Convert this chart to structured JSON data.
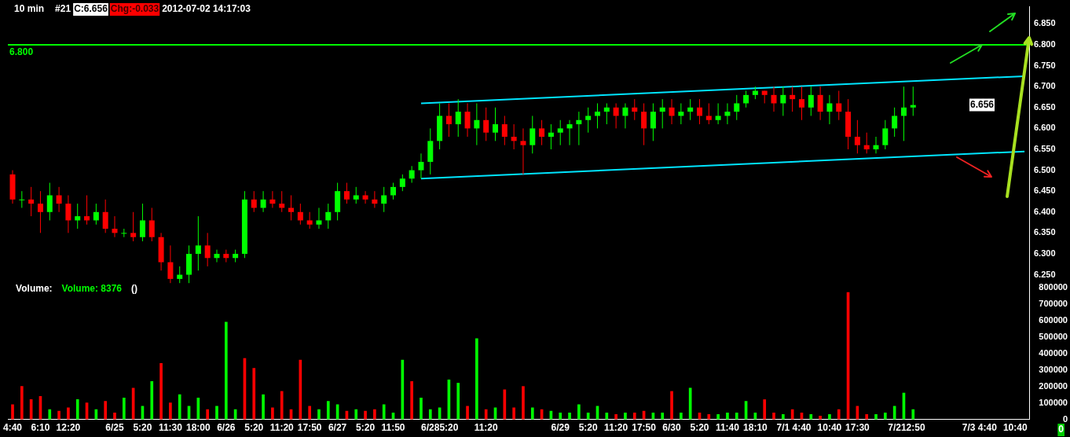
{
  "chart_data": {
    "type": "candlestick",
    "title": "10 min",
    "annotations": [
      "#21",
      "C:6.656",
      "Chg:-0.033",
      "2012-07-02 14:17:03",
      "Volume:",
      "Volume: 8376",
      "()",
      "0",
      {
        "text": "6.656",
        "y": 6.656
      }
    ],
    "categories": [
      "4:40",
      null,
      null,
      "6:10",
      null,
      null,
      "12:20",
      null,
      null,
      null,
      null,
      "6/25",
      null,
      null,
      "5:20",
      null,
      null,
      "11:30",
      null,
      null,
      "18:00",
      null,
      null,
      "6/26",
      null,
      null,
      "5:20",
      null,
      null,
      "11:20",
      null,
      null,
      "17:50",
      null,
      null,
      "6/27",
      null,
      null,
      "5:20",
      null,
      null,
      "11:50",
      null,
      null,
      null,
      "6/28",
      null,
      "5:20",
      null,
      null,
      null,
      "11:20",
      null,
      null,
      null,
      null,
      null,
      null,
      null,
      "6/29",
      null,
      null,
      "5:20",
      null,
      null,
      "11:20",
      null,
      null,
      "17:50",
      null,
      null,
      "6/30",
      null,
      null,
      "5:20",
      null,
      null,
      "11:40",
      null,
      null,
      "18:10",
      null,
      null,
      "7/1",
      null,
      "4:40",
      null,
      null,
      "10:40",
      null,
      null,
      "17:30",
      null,
      null,
      null,
      "7/2",
      null,
      "12:50",
      null,
      null,
      null,
      null,
      null,
      "7/3",
      null,
      "4:40",
      null,
      null,
      "10:40",
      null
    ],
    "ohlc": [
      [
        6.49,
        6.5,
        6.42,
        6.43
      ],
      [
        6.43,
        6.45,
        6.41,
        6.43
      ],
      [
        6.43,
        6.46,
        6.39,
        6.42
      ],
      [
        6.42,
        6.45,
        6.35,
        6.4
      ],
      [
        6.4,
        6.47,
        6.38,
        6.44
      ],
      [
        6.44,
        6.46,
        6.4,
        6.42
      ],
      [
        6.42,
        6.44,
        6.35,
        6.38
      ],
      [
        6.38,
        6.42,
        6.36,
        6.39
      ],
      [
        6.39,
        6.44,
        6.37,
        6.38
      ],
      [
        6.38,
        6.42,
        6.37,
        6.4
      ],
      [
        6.4,
        6.43,
        6.35,
        6.36
      ],
      [
        6.36,
        6.39,
        6.34,
        6.35
      ],
      [
        6.35,
        6.36,
        6.34,
        6.35
      ],
      [
        6.35,
        6.4,
        6.33,
        6.34
      ],
      [
        6.34,
        6.42,
        6.33,
        6.38
      ],
      [
        6.38,
        6.41,
        6.33,
        6.34
      ],
      [
        6.34,
        6.35,
        6.26,
        6.28
      ],
      [
        6.28,
        6.32,
        6.23,
        6.24
      ],
      [
        6.24,
        6.27,
        6.23,
        6.25
      ],
      [
        6.25,
        6.32,
        6.23,
        6.3
      ],
      [
        6.3,
        6.39,
        6.26,
        6.32
      ],
      [
        6.32,
        6.35,
        6.27,
        6.29
      ],
      [
        6.29,
        6.31,
        6.28,
        6.3
      ],
      [
        6.3,
        6.31,
        6.28,
        6.29
      ],
      [
        6.29,
        6.31,
        6.28,
        6.3
      ],
      [
        6.3,
        6.45,
        6.29,
        6.43
      ],
      [
        6.43,
        6.45,
        6.4,
        6.41
      ],
      [
        6.41,
        6.45,
        6.4,
        6.43
      ],
      [
        6.43,
        6.45,
        6.41,
        6.42
      ],
      [
        6.42,
        6.45,
        6.4,
        6.41
      ],
      [
        6.41,
        6.44,
        6.38,
        6.4
      ],
      [
        6.4,
        6.42,
        6.37,
        6.38
      ],
      [
        6.38,
        6.4,
        6.36,
        6.37
      ],
      [
        6.37,
        6.41,
        6.36,
        6.38
      ],
      [
        6.38,
        6.42,
        6.36,
        6.4
      ],
      [
        6.4,
        6.47,
        6.38,
        6.45
      ],
      [
        6.45,
        6.47,
        6.42,
        6.43
      ],
      [
        6.43,
        6.46,
        6.42,
        6.44
      ],
      [
        6.44,
        6.45,
        6.42,
        6.43
      ],
      [
        6.43,
        6.45,
        6.41,
        6.42
      ],
      [
        6.42,
        6.46,
        6.4,
        6.44
      ],
      [
        6.44,
        6.47,
        6.43,
        6.46
      ],
      [
        6.46,
        6.49,
        6.45,
        6.48
      ],
      [
        6.48,
        6.51,
        6.47,
        6.5
      ],
      [
        6.5,
        6.54,
        6.48,
        6.52
      ],
      [
        6.52,
        6.6,
        6.49,
        6.57
      ],
      [
        6.57,
        6.66,
        6.55,
        6.63
      ],
      [
        6.63,
        6.66,
        6.58,
        6.61
      ],
      [
        6.61,
        6.67,
        6.58,
        6.64
      ],
      [
        6.64,
        6.66,
        6.58,
        6.6
      ],
      [
        6.6,
        6.66,
        6.56,
        6.62
      ],
      [
        6.62,
        6.65,
        6.57,
        6.59
      ],
      [
        6.59,
        6.65,
        6.57,
        6.61
      ],
      [
        6.61,
        6.63,
        6.56,
        6.58
      ],
      [
        6.58,
        6.61,
        6.55,
        6.57
      ],
      [
        6.57,
        6.6,
        6.49,
        6.56
      ],
      [
        6.56,
        6.63,
        6.54,
        6.6
      ],
      [
        6.6,
        6.62,
        6.56,
        6.58
      ],
      [
        6.58,
        6.61,
        6.55,
        6.59
      ],
      [
        6.59,
        6.62,
        6.56,
        6.6
      ],
      [
        6.6,
        6.62,
        6.56,
        6.61
      ],
      [
        6.61,
        6.64,
        6.56,
        6.62
      ],
      [
        6.62,
        6.65,
        6.59,
        6.63
      ],
      [
        6.63,
        6.66,
        6.6,
        6.64
      ],
      [
        6.64,
        6.66,
        6.61,
        6.65
      ],
      [
        6.65,
        6.66,
        6.6,
        6.63
      ],
      [
        6.63,
        6.66,
        6.6,
        6.65
      ],
      [
        6.65,
        6.67,
        6.62,
        6.64
      ],
      [
        6.64,
        6.66,
        6.56,
        6.6
      ],
      [
        6.6,
        6.66,
        6.57,
        6.64
      ],
      [
        6.64,
        6.67,
        6.6,
        6.65
      ],
      [
        6.65,
        6.67,
        6.61,
        6.63
      ],
      [
        6.63,
        6.66,
        6.61,
        6.64
      ],
      [
        6.64,
        6.67,
        6.62,
        6.65
      ],
      [
        6.65,
        6.67,
        6.61,
        6.63
      ],
      [
        6.63,
        6.66,
        6.61,
        6.62
      ],
      [
        6.62,
        6.66,
        6.61,
        6.63
      ],
      [
        6.63,
        6.66,
        6.61,
        6.64
      ],
      [
        6.64,
        6.68,
        6.62,
        6.66
      ],
      [
        6.66,
        6.69,
        6.65,
        6.68
      ],
      [
        6.68,
        6.7,
        6.67,
        6.69
      ],
      [
        6.69,
        6.69,
        6.66,
        6.68
      ],
      [
        6.68,
        6.7,
        6.64,
        6.66
      ],
      [
        6.66,
        6.7,
        6.63,
        6.68
      ],
      [
        6.68,
        6.7,
        6.64,
        6.67
      ],
      [
        6.67,
        6.7,
        6.62,
        6.65
      ],
      [
        6.65,
        6.7,
        6.63,
        6.68
      ],
      [
        6.68,
        6.7,
        6.62,
        6.64
      ],
      [
        6.64,
        6.68,
        6.61,
        6.66
      ],
      [
        6.66,
        6.69,
        6.62,
        6.64
      ],
      [
        6.64,
        6.67,
        6.55,
        6.58
      ],
      [
        6.58,
        6.62,
        6.54,
        6.56
      ],
      [
        6.56,
        6.59,
        6.54,
        6.55
      ],
      [
        6.55,
        6.58,
        6.54,
        6.56
      ],
      [
        6.56,
        6.62,
        6.55,
        6.6
      ],
      [
        6.6,
        6.65,
        6.58,
        6.63
      ],
      [
        6.63,
        6.7,
        6.57,
        6.65
      ],
      [
        6.65,
        6.7,
        6.63,
        6.656
      ],
      null,
      null,
      null,
      null,
      null,
      null,
      null,
      null,
      null,
      null,
      null,
      null
    ],
    "colors": [
      "#ff0000",
      "#00ff00",
      "#ff0000",
      "#ff0000",
      "#00ff00",
      "#ff0000",
      "#ff0000",
      "#00ff00",
      "#ff0000",
      "#00ff00",
      "#ff0000",
      "#ff0000",
      "#00ff00",
      "#ff0000",
      "#00ff00",
      "#ff0000",
      "#ff0000",
      "#ff0000",
      "#00ff00",
      "#00ff00",
      "#00ff00",
      "#ff0000",
      "#00ff00",
      "#ff0000",
      "#00ff00",
      "#00ff00",
      "#ff0000",
      "#00ff00",
      "#ff0000",
      "#ff0000",
      "#ff0000",
      "#ff0000",
      "#ff0000",
      "#00ff00",
      "#00ff00",
      "#00ff00",
      "#ff0000",
      "#00ff00",
      "#ff0000",
      "#ff0000",
      "#00ff00",
      "#00ff00",
      "#00ff00",
      "#00ff00",
      "#00ff00",
      "#00ff00",
      "#00ff00",
      "#ff0000",
      "#00ff00",
      "#ff0000",
      "#00ff00",
      "#ff0000",
      "#00ff00",
      "#ff0000",
      "#ff0000",
      "#ff0000",
      "#00ff00",
      "#ff0000",
      "#00ff00",
      "#00ff00",
      "#00ff00",
      "#00ff00",
      "#00ff00",
      "#00ff00",
      "#00ff00",
      "#ff0000",
      "#00ff00",
      "#ff0000",
      "#ff0000",
      "#00ff00",
      "#00ff00",
      "#ff0000",
      "#00ff00",
      "#00ff00",
      "#ff0000",
      "#ff0000",
      "#00ff00",
      "#00ff00",
      "#00ff00",
      "#00ff00",
      "#00ff00",
      "#ff0000",
      "#ff0000",
      "#00ff00",
      "#ff0000",
      "#ff0000",
      "#00ff00",
      "#ff0000",
      "#00ff00",
      "#ff0000",
      "#ff0000",
      "#ff0000",
      "#ff0000",
      "#00ff00",
      "#00ff00",
      "#00ff00",
      "#00ff00",
      "#00ff00",
      null,
      null,
      null,
      null,
      null,
      null,
      null,
      null,
      null,
      null,
      null,
      null
    ],
    "series": [
      {
        "type": "line",
        "color": "#00e5ff",
        "values": [
          null,
          null,
          null,
          null,
          null,
          null,
          null,
          null,
          null,
          null,
          null,
          null,
          null,
          null,
          null,
          null,
          null,
          null,
          null,
          null,
          null,
          null,
          null,
          null,
          null,
          null,
          null,
          null,
          null,
          null,
          null,
          null,
          null,
          null,
          null,
          null,
          null,
          null,
          null,
          null,
          null,
          null,
          null,
          null,
          6.66,
          null,
          null,
          null,
          null,
          null,
          null,
          null,
          null,
          null,
          null,
          null,
          null,
          null,
          null,
          null,
          null,
          null,
          null,
          null,
          null,
          null,
          null,
          null,
          null,
          null,
          null,
          null,
          null,
          null,
          null,
          null,
          null,
          null,
          null,
          null,
          null,
          null,
          null,
          null,
          null,
          null,
          null,
          null,
          null,
          null,
          null,
          null,
          null,
          null,
          null,
          null,
          null,
          null,
          null,
          null,
          null,
          null,
          null,
          null,
          null,
          null,
          null,
          null,
          null,
          6.725
        ]
      },
      {
        "type": "line",
        "color": "#00e5ff",
        "values": [
          null,
          null,
          null,
          null,
          null,
          null,
          null,
          null,
          null,
          null,
          null,
          null,
          null,
          null,
          null,
          null,
          null,
          null,
          null,
          null,
          null,
          null,
          null,
          null,
          null,
          null,
          null,
          null,
          null,
          null,
          null,
          null,
          null,
          null,
          null,
          null,
          null,
          null,
          null,
          null,
          null,
          null,
          null,
          null,
          6.48,
          null,
          null,
          null,
          null,
          null,
          null,
          null,
          null,
          null,
          null,
          null,
          null,
          null,
          null,
          null,
          null,
          null,
          null,
          null,
          null,
          null,
          null,
          null,
          null,
          null,
          null,
          null,
          null,
          null,
          null,
          null,
          null,
          null,
          null,
          null,
          null,
          null,
          null,
          null,
          null,
          null,
          null,
          null,
          null,
          null,
          null,
          null,
          null,
          null,
          null,
          null,
          null,
          null,
          null,
          null,
          null,
          null,
          null,
          null,
          null,
          null,
          null,
          null,
          null,
          6.545
        ]
      },
      {
        "type": "bar",
        "axis": "y2",
        "values": [
          90000,
          200000,
          120000,
          140000,
          60000,
          50000,
          70000,
          120000,
          100000,
          60000,
          110000,
          40000,
          130000,
          190000,
          80000,
          230000,
          340000,
          100000,
          150000,
          80000,
          130000,
          60000,
          80000,
          590000,
          60000,
          370000,
          310000,
          150000,
          70000,
          170000,
          60000,
          360000,
          80000,
          60000,
          110000,
          90000,
          50000,
          60000,
          50000,
          60000,
          90000,
          40000,
          360000,
          230000,
          130000,
          60000,
          70000,
          240000,
          220000,
          80000,
          490000,
          60000,
          70000,
          180000,
          70000,
          200000,
          70000,
          60000,
          50000,
          40000,
          40000,
          90000,
          40000,
          80000,
          40000,
          30000,
          40000,
          40000,
          50000,
          40000,
          40000,
          170000,
          40000,
          190000,
          40000,
          30000,
          30000,
          40000,
          40000,
          110000,
          40000,
          120000,
          40000,
          30000,
          60000,
          40000,
          30000,
          20000,
          30000,
          60000,
          770000,
          80000,
          30000,
          30000,
          40000,
          80000,
          160000,
          60000,
          null,
          null,
          null,
          null,
          null,
          null,
          null,
          null,
          null,
          null,
          null,
          null
        ],
        "colors": [
          "#ff0000",
          "#ff0000",
          "#ff0000",
          "#ff0000",
          "#00ff00",
          "#ff0000",
          "#ff0000",
          "#00ff00",
          "#ff0000",
          "#00ff00",
          "#ff0000",
          "#ff0000",
          "#00ff00",
          "#ff0000",
          "#00ff00",
          "#00ff00",
          "#ff0000",
          "#ff0000",
          "#00ff00",
          "#00ff00",
          "#00ff00",
          "#ff0000",
          "#00ff00",
          "#00ff00",
          "#00ff00",
          "#ff0000",
          "#ff0000",
          "#00ff00",
          "#ff0000",
          "#ff0000",
          "#ff0000",
          "#ff0000",
          "#ff0000",
          "#00ff00",
          "#00ff00",
          "#00ff00",
          "#ff0000",
          "#00ff00",
          "#ff0000",
          "#ff0000",
          "#00ff00",
          "#00ff00",
          "#00ff00",
          "#ff0000",
          "#00ff00",
          "#00ff00",
          "#00ff00",
          "#00ff00",
          "#00ff00",
          "#ff0000",
          "#00ff00",
          "#ff0000",
          "#00ff00",
          "#ff0000",
          "#ff0000",
          "#ff0000",
          "#00ff00",
          "#ff0000",
          "#00ff00",
          "#00ff00",
          "#00ff00",
          "#00ff00",
          "#00ff00",
          "#00ff00",
          "#00ff00",
          "#ff0000",
          "#00ff00",
          "#ff0000",
          "#ff0000",
          "#00ff00",
          "#00ff00",
          "#ff0000",
          "#00ff00",
          "#00ff00",
          "#ff0000",
          "#ff0000",
          "#00ff00",
          "#00ff00",
          "#00ff00",
          "#00ff00",
          "#00ff00",
          "#ff0000",
          "#ff0000",
          "#00ff00",
          "#ff0000",
          "#ff0000",
          "#00ff00",
          "#ff0000",
          "#00ff00",
          "#ff0000",
          "#ff0000",
          "#ff0000",
          "#ff0000",
          "#00ff00",
          "#00ff00",
          "#00ff00",
          "#00ff00",
          "#00ff00",
          null,
          null,
          null,
          null,
          null,
          null,
          null,
          null,
          null,
          null,
          null,
          null
        ]
      }
    ],
    "ylim": [
      5.904,
      6.891
    ],
    "yticks": [
      {
        "value": 6.25,
        "label": "6.250"
      },
      {
        "value": 6.3,
        "label": "6.300"
      },
      {
        "value": 6.35,
        "label": "6.350"
      },
      {
        "value": 6.4,
        "label": "6.400"
      },
      {
        "value": 6.45,
        "label": "6.450"
      },
      {
        "value": 6.5,
        "label": "6.500"
      },
      {
        "value": 6.55,
        "label": "6.550"
      },
      {
        "value": 6.6,
        "label": "6.600"
      },
      {
        "value": 6.65,
        "label": "6.650"
      },
      {
        "value": 6.7,
        "label": "6.700"
      },
      {
        "value": 6.75,
        "label": "6.750"
      },
      {
        "value": 6.8,
        "label": "6.800"
      },
      {
        "value": 6.85,
        "label": "6.850"
      }
    ],
    "y2lim": [
      0,
      2503000
    ],
    "y2ticks": [
      0,
      100000,
      200000,
      300000,
      400000,
      500000,
      600000,
      700000,
      800000
    ],
    "ref_lines": [
      {
        "axis": "y",
        "value": 6.8,
        "label": "6.800",
        "color": "#00ff00"
      }
    ]
  }
}
